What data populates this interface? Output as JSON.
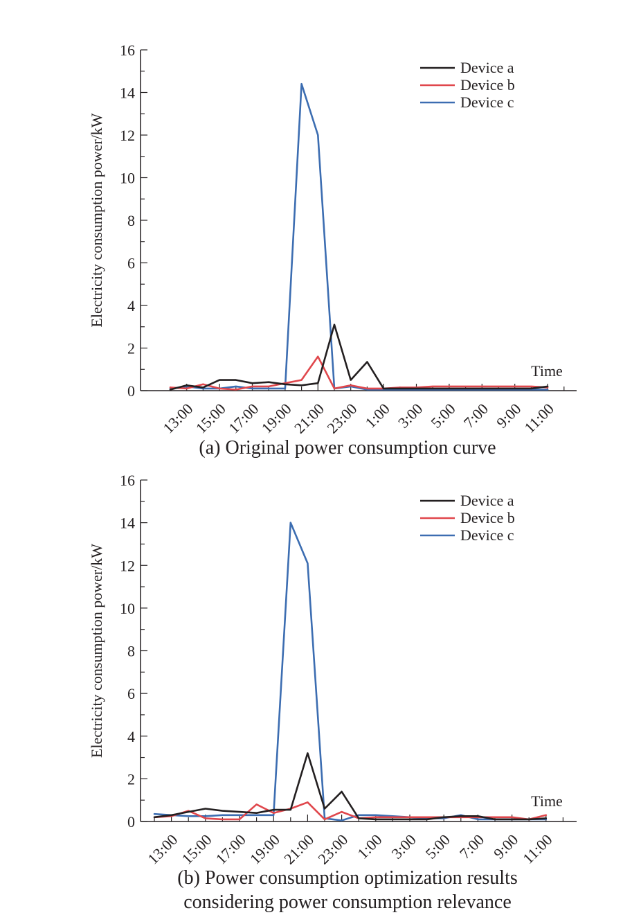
{
  "chart_data": [
    {
      "type": "line",
      "caption": "(a) Original power consumption curve",
      "xlabel": "Time",
      "ylabel": "Electricity consumption power/kW",
      "ylim": [
        0,
        16
      ],
      "yticks": [
        "0",
        "2",
        "4",
        "6",
        "8",
        "10",
        "12",
        "14",
        "16"
      ],
      "x_tick_labels": [
        "13:00",
        "15:00",
        "17:00",
        "19:00",
        "21:00",
        "23:00",
        "1:00",
        "3:00",
        "5:00",
        "7:00",
        "9:00",
        "11:00"
      ],
      "x": [
        "12:00",
        "13:00",
        "14:00",
        "15:00",
        "16:00",
        "17:00",
        "18:00",
        "19:00",
        "20:00",
        "21:00",
        "22:00",
        "23:00",
        "0:00",
        "1:00",
        "2:00",
        "3:00",
        "4:00",
        "5:00",
        "6:00",
        "7:00",
        "8:00",
        "9:00",
        "10:00",
        "11:00"
      ],
      "legend_position": "top-right",
      "series": [
        {
          "name": "Device a",
          "color": "#231f20",
          "values": [
            0.05,
            0.25,
            0.15,
            0.5,
            0.5,
            0.35,
            0.4,
            0.3,
            0.25,
            0.35,
            3.1,
            0.5,
            1.35,
            0.1,
            0.1,
            0.1,
            0.1,
            0.1,
            0.1,
            0.1,
            0.1,
            0.1,
            0.1,
            0.2
          ]
        },
        {
          "name": "Device b",
          "color": "#e0474c",
          "values": [
            0.15,
            0.1,
            0.3,
            0.1,
            0.05,
            0.2,
            0.2,
            0.35,
            0.5,
            1.6,
            0.1,
            0.25,
            0.1,
            0.1,
            0.15,
            0.15,
            0.2,
            0.2,
            0.2,
            0.2,
            0.2,
            0.2,
            0.2,
            0.15
          ]
        },
        {
          "name": "Device c",
          "color": "#3c6db1",
          "values": [
            0.1,
            0.2,
            0.1,
            0.1,
            0.2,
            0.1,
            0.1,
            0.1,
            14.4,
            12.0,
            0.1,
            0.2,
            0.05,
            0.05,
            0.05,
            0.05,
            0.05,
            0.05,
            0.05,
            0.05,
            0.05,
            0.05,
            0.05,
            0.05
          ]
        }
      ]
    },
    {
      "type": "line",
      "caption_lines": [
        "(b) Power consumption optimization results",
        "considering power consumption relevance"
      ],
      "xlabel": "Time",
      "ylabel": "Electricity consumption power/kW",
      "ylim": [
        0,
        16
      ],
      "yticks": [
        "0",
        "2",
        "4",
        "6",
        "8",
        "10",
        "12",
        "14",
        "16"
      ],
      "x_tick_labels": [
        "13:00",
        "15:00",
        "17:00",
        "19:00",
        "21:00",
        "23:00",
        "1:00",
        "3:00",
        "5:00",
        "7:00",
        "9:00",
        "11:00"
      ],
      "x": [
        "12:00",
        "13:00",
        "14:00",
        "15:00",
        "16:00",
        "17:00",
        "18:00",
        "19:00",
        "20:00",
        "21:00",
        "22:00",
        "23:00",
        "0:00",
        "1:00",
        "2:00",
        "3:00",
        "4:00",
        "5:00",
        "6:00",
        "7:00",
        "8:00",
        "9:00",
        "10:00",
        "11:00"
      ],
      "legend_position": "top-right",
      "series": [
        {
          "name": "Device a",
          "color": "#231f20",
          "values": [
            0.2,
            0.3,
            0.45,
            0.6,
            0.5,
            0.45,
            0.4,
            0.55,
            0.55,
            3.2,
            0.6,
            1.4,
            0.15,
            0.1,
            0.1,
            0.1,
            0.1,
            0.2,
            0.25,
            0.25,
            0.1,
            0.1,
            0.1,
            0.15
          ]
        },
        {
          "name": "Device b",
          "color": "#e0474c",
          "values": [
            0.2,
            0.25,
            0.5,
            0.15,
            0.1,
            0.1,
            0.8,
            0.4,
            0.6,
            0.9,
            0.1,
            0.45,
            0.15,
            0.2,
            0.2,
            0.2,
            0.2,
            0.2,
            0.2,
            0.2,
            0.2,
            0.2,
            0.1,
            0.3
          ]
        },
        {
          "name": "Device c",
          "color": "#3c6db1",
          "values": [
            0.35,
            0.3,
            0.25,
            0.25,
            0.3,
            0.3,
            0.3,
            0.3,
            14.0,
            12.1,
            0.15,
            0.05,
            0.3,
            0.3,
            0.25,
            0.2,
            0.15,
            0.15,
            0.3,
            0.1,
            0.1,
            0.1,
            0.1,
            0.1
          ]
        }
      ]
    }
  ]
}
